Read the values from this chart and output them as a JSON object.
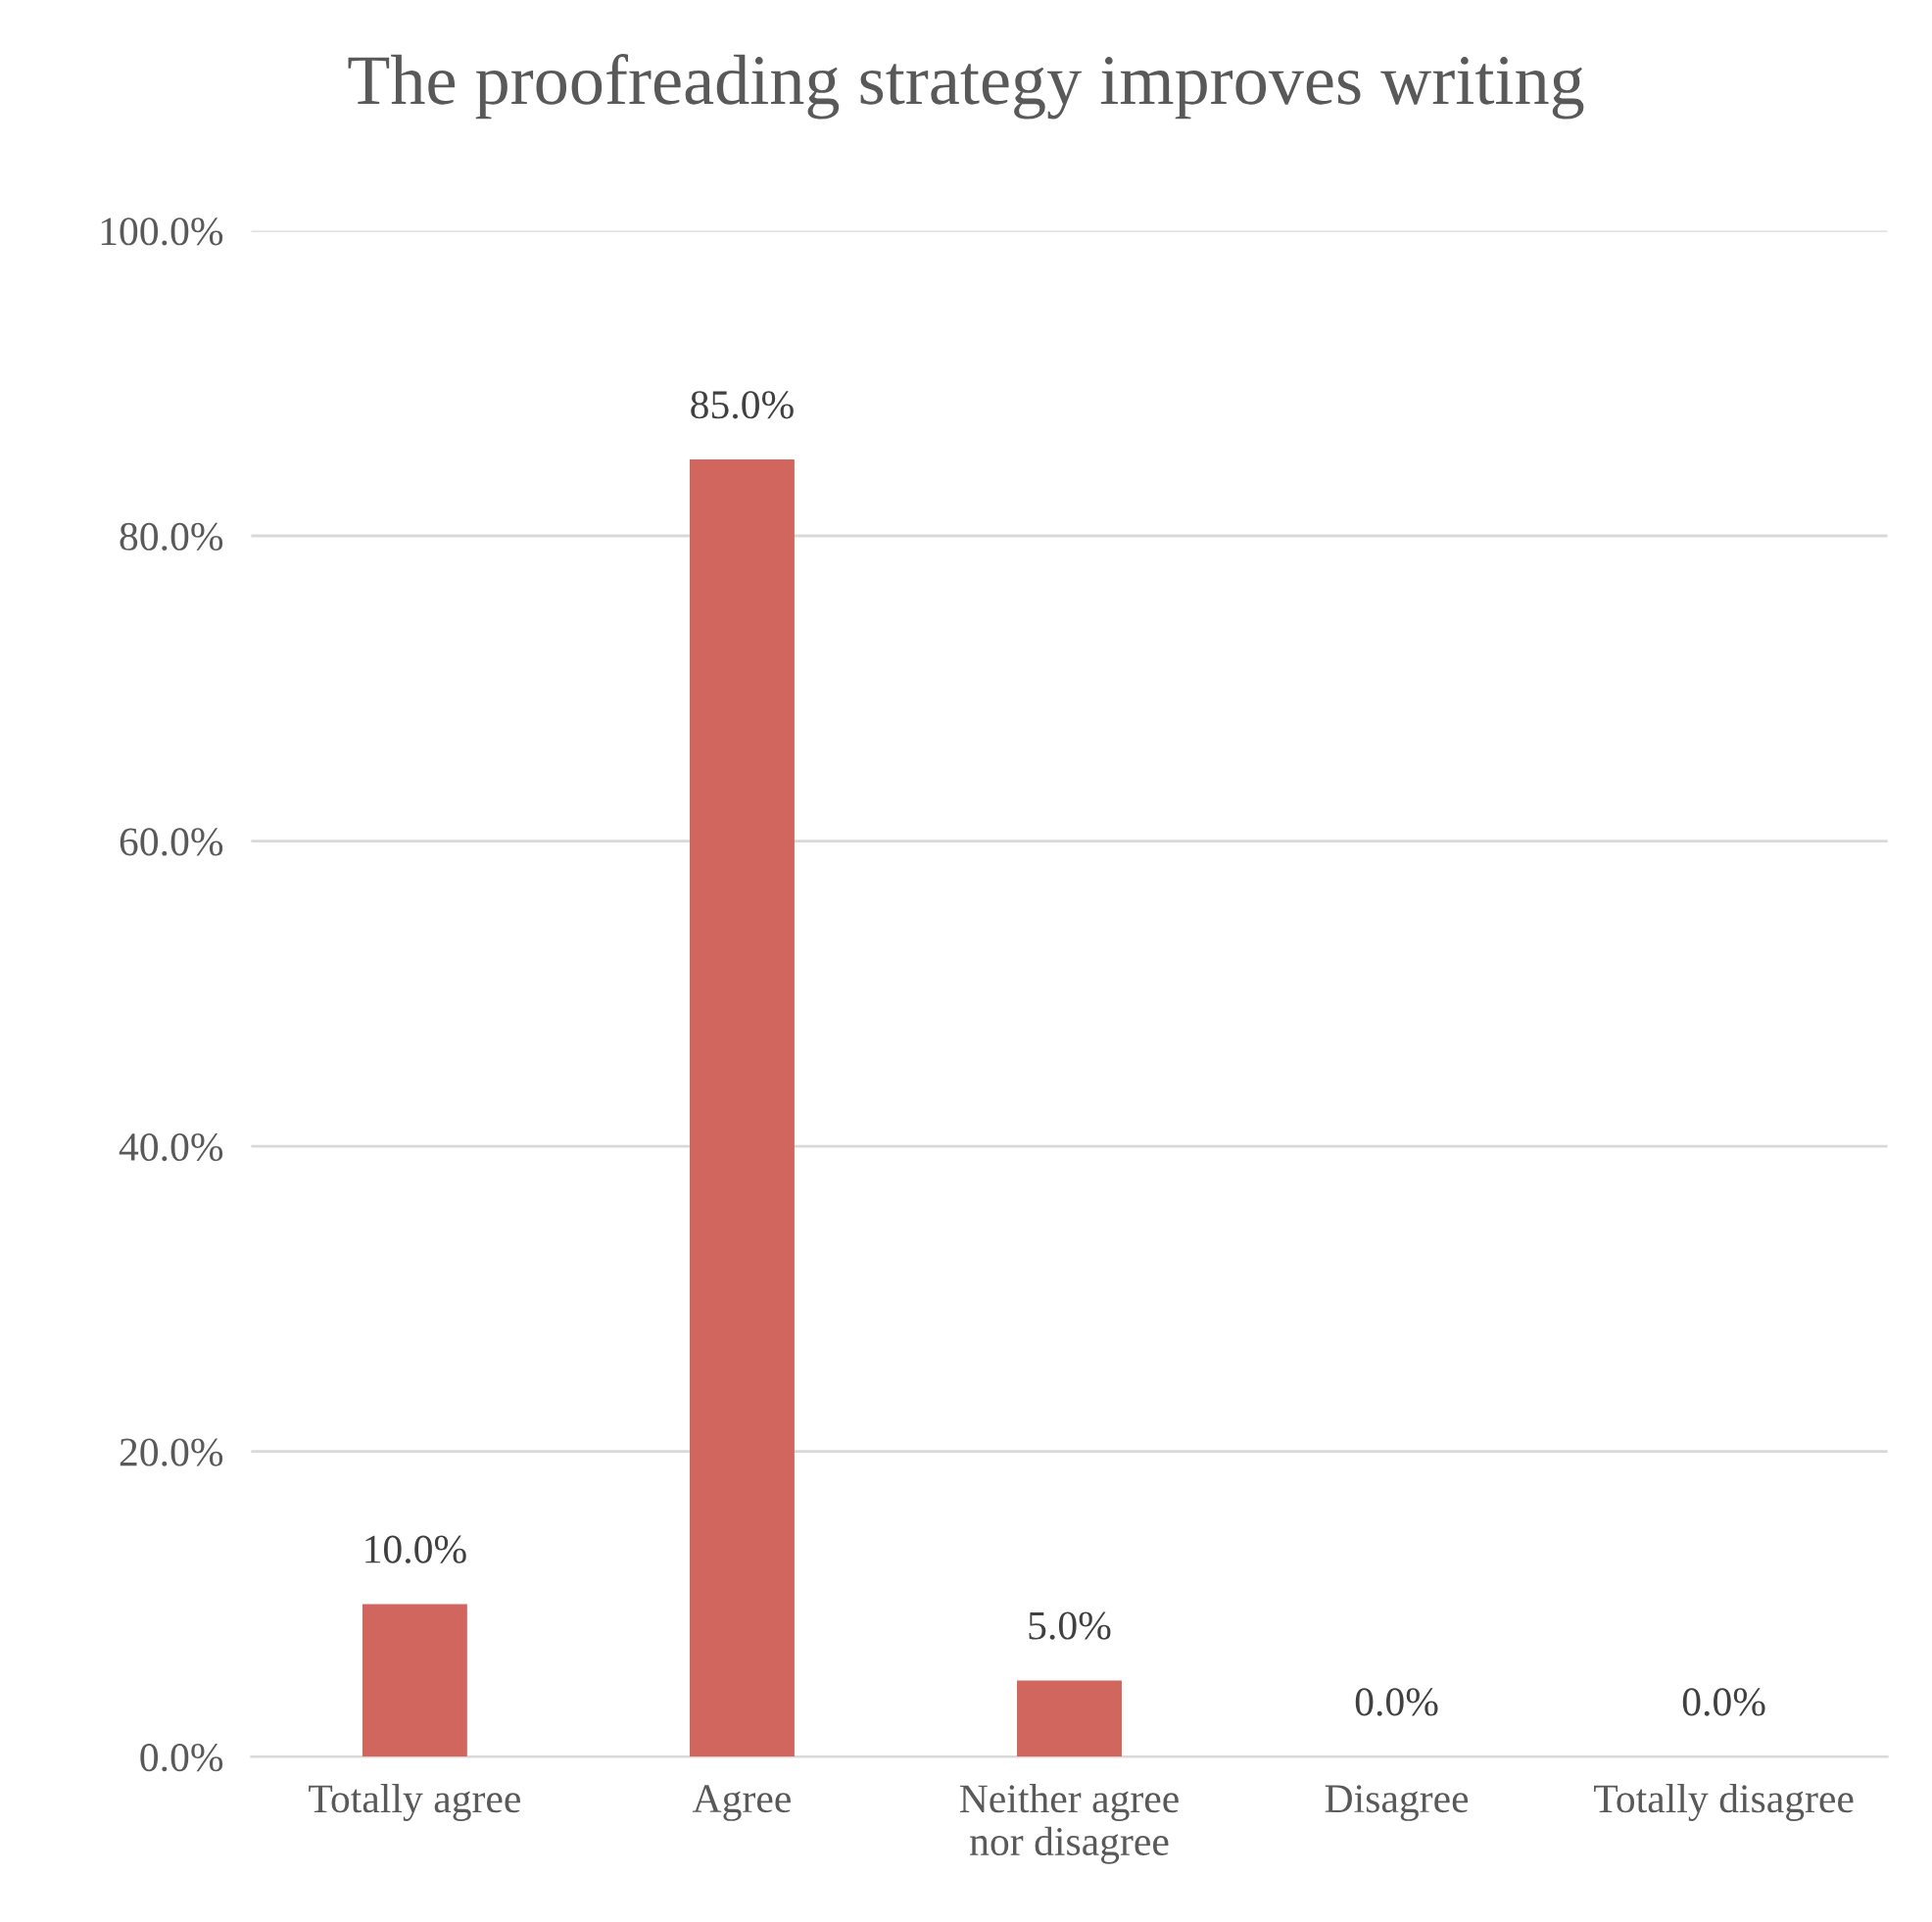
{
  "chart_data": {
    "type": "bar",
    "title": "The proofreading strategy improves writing",
    "categories": [
      "Totally agree",
      "Agree",
      "Neither agree\nnor disagree",
      "Disagree",
      "Totally disagree"
    ],
    "values": [
      10.0,
      85.0,
      5.0,
      0.0,
      0.0
    ],
    "value_labels": [
      "10.0%",
      "85.0%",
      "5.0%",
      "0.0%",
      "0.0%"
    ],
    "color": "#d0665e",
    "ylim": [
      0,
      100
    ],
    "yticks": [
      {
        "value": 0,
        "label": "0.0%"
      },
      {
        "value": 20,
        "label": "20.0%"
      },
      {
        "value": 40,
        "label": "40.0%"
      },
      {
        "value": 60,
        "label": "60.0%"
      },
      {
        "value": 80,
        "label": "80.0%"
      },
      {
        "value": 100,
        "label": "100.0%"
      }
    ],
    "grid": "y"
  }
}
